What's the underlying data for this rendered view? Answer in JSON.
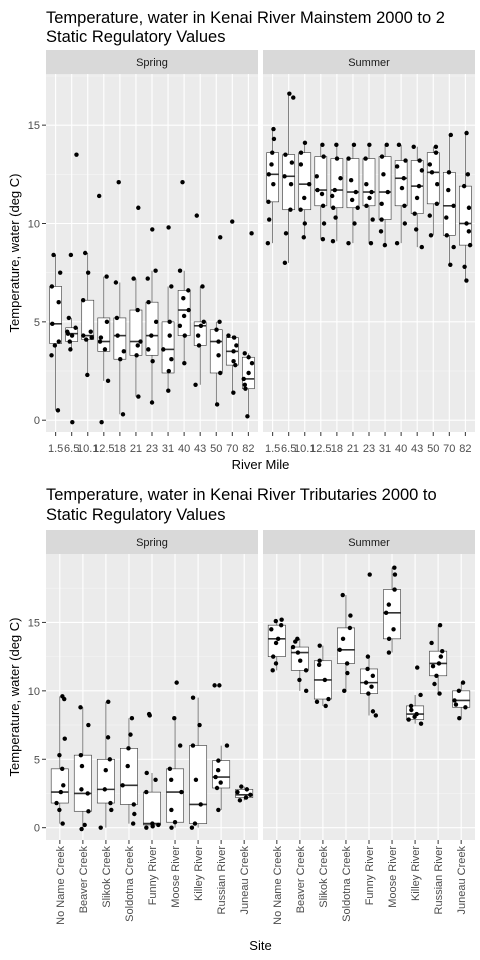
{
  "chart_data": [
    {
      "type": "boxplot",
      "title": "Temperature, water in Kenai River Mainstem  2000 to 2",
      "subtitle": "Static Regulatory Values",
      "xlabel": "River Mile",
      "ylabel": "Temperature, water (deg C)",
      "ylim": [
        -0.6,
        17.6
      ],
      "yticks": [
        0,
        5,
        10,
        15
      ],
      "x_tick_labels_rotated": false,
      "facets": [
        {
          "name": "Spring",
          "categories": [
            "1.5",
            "6.5",
            "10.1",
            "12.5",
            "18",
            "21",
            "23",
            "31",
            "40",
            "43",
            "50",
            "70",
            "82"
          ],
          "boxes": [
            {
              "q1": 3.9,
              "median": 4.9,
              "q3": 6.8,
              "whisker_low": 0.5,
              "whisker_high": 8.4
            },
            {
              "q1": 4.0,
              "median": 4.4,
              "q3": 4.7,
              "whisker_low": 3.6,
              "whisker_high": 5.2
            },
            {
              "q1": 4.1,
              "median": 4.3,
              "q3": 6.1,
              "whisker_low": 2.3,
              "whisker_high": 8.5
            },
            {
              "q1": 3.5,
              "median": 4.0,
              "q3": 5.2,
              "whisker_low": 2.0,
              "whisker_high": 7.3
            },
            {
              "q1": 3.1,
              "median": 4.3,
              "q3": 5.2,
              "whisker_low": 0.3,
              "whisker_high": 7.0
            },
            {
              "q1": 3.3,
              "median": 4.0,
              "q3": 5.6,
              "whisker_low": 1.2,
              "whisker_high": 7.2
            },
            {
              "q1": 3.3,
              "median": 4.3,
              "q3": 6.0,
              "whisker_low": 0.9,
              "whisker_high": 7.6
            },
            {
              "q1": 2.4,
              "median": 3.6,
              "q3": 5.0,
              "whisker_low": 1.5,
              "whisker_high": 6.8
            },
            {
              "q1": 4.3,
              "median": 5.6,
              "q3": 6.6,
              "whisker_low": 2.9,
              "whisker_high": 7.6
            },
            {
              "q1": 3.8,
              "median": 4.8,
              "q3": 5.0,
              "whisker_low": 1.8,
              "whisker_high": 6.8
            },
            {
              "q1": 2.4,
              "median": 4.0,
              "q3": 4.6,
              "whisker_low": 0.8,
              "whisker_high": 5.0
            },
            {
              "q1": 2.8,
              "median": 3.5,
              "q3": 4.2,
              "whisker_low": 1.4,
              "whisker_high": 4.3
            },
            {
              "q1": 1.6,
              "median": 2.1,
              "q3": 3.2,
              "whisker_low": 0.2,
              "whisker_high": 3.4
            }
          ],
          "points": [
            [
              0.5,
              3.3,
              3.8,
              4.0,
              4.9,
              6.0,
              6.8,
              7.5,
              8.4
            ],
            [
              -0.1,
              3.6,
              4.0,
              4.3,
              4.4,
              4.5,
              4.7,
              5.2,
              8.4,
              13.5
            ],
            [
              2.3,
              4.1,
              4.2,
              4.3,
              4.5,
              6.1,
              7.5,
              8.5
            ],
            [
              -0.1,
              2.0,
              3.6,
              4.0,
              4.2,
              5.0,
              7.3,
              11.4
            ],
            [
              0.3,
              3.1,
              3.5,
              4.3,
              5.2,
              7.0,
              12.1
            ],
            [
              1.2,
              3.3,
              3.8,
              4.0,
              5.6,
              7.2,
              10.8
            ],
            [
              0.9,
              3.0,
              3.6,
              4.3,
              5.0,
              6.0,
              7.2,
              7.6,
              9.7
            ],
            [
              1.5,
              2.5,
              3.1,
              3.6,
              4.3,
              5.0,
              6.8,
              9.8
            ],
            [
              2.9,
              4.3,
              4.8,
              5.3,
              5.6,
              6.2,
              6.6,
              7.6,
              12.1
            ],
            [
              1.8,
              3.8,
              4.3,
              4.8,
              5.0,
              6.8,
              10.4
            ],
            [
              0.8,
              2.4,
              3.3,
              4.0,
              4.6,
              5.0,
              9.3
            ],
            [
              1.4,
              2.8,
              3.0,
              3.5,
              3.8,
              4.2,
              4.3,
              10.1
            ],
            [
              0.2,
              1.6,
              1.8,
              2.1,
              2.4,
              2.9,
              3.2,
              3.4,
              9.5
            ]
          ]
        },
        {
          "name": "Summer",
          "categories": [
            "1.5",
            "6.5",
            "10.1",
            "12.5",
            "18",
            "21",
            "23",
            "31",
            "40",
            "43",
            "50",
            "70",
            "82"
          ],
          "boxes": [
            {
              "q1": 11.1,
              "median": 12.5,
              "q3": 13.6,
              "whisker_low": 9.0,
              "whisker_high": 14.8
            },
            {
              "q1": 10.7,
              "median": 12.4,
              "q3": 13.5,
              "whisker_low": 8.0,
              "whisker_high": 16.6
            },
            {
              "q1": 10.7,
              "median": 12.0,
              "q3": 13.6,
              "whisker_low": 9.3,
              "whisker_high": 14.1
            },
            {
              "q1": 10.9,
              "median": 11.7,
              "q3": 13.4,
              "whisker_low": 9.2,
              "whisker_high": 14.0
            },
            {
              "q1": 10.8,
              "median": 11.7,
              "q3": 13.3,
              "whisker_low": 9.1,
              "whisker_high": 14.0
            },
            {
              "q1": 10.8,
              "median": 11.6,
              "q3": 13.3,
              "whisker_low": 9.0,
              "whisker_high": 14.0
            },
            {
              "q1": 10.9,
              "median": 11.6,
              "q3": 13.3,
              "whisker_low": 9.0,
              "whisker_high": 14.0
            },
            {
              "q1": 10.2,
              "median": 11.6,
              "q3": 13.4,
              "whisker_low": 8.9,
              "whisker_high": 14.0
            },
            {
              "q1": 10.9,
              "median": 12.3,
              "q3": 13.2,
              "whisker_low": 9.0,
              "whisker_high": 14.0
            },
            {
              "q1": 10.5,
              "median": 11.9,
              "q3": 13.2,
              "whisker_low": 8.8,
              "whisker_high": 13.9
            },
            {
              "q1": 11.0,
              "median": 12.6,
              "q3": 13.6,
              "whisker_low": 9.4,
              "whisker_high": 13.9
            },
            {
              "q1": 9.4,
              "median": 10.9,
              "q3": 12.6,
              "whisker_low": 7.9,
              "whisker_high": 14.5
            },
            {
              "q1": 8.9,
              "median": 10.0,
              "q3": 11.9,
              "whisker_low": 7.1,
              "whisker_high": 14.6
            }
          ],
          "points": [
            [
              9.0,
              10.2,
              11.1,
              12.0,
              12.5,
              13.0,
              13.6,
              14.3,
              14.8
            ],
            [
              8.0,
              9.5,
              10.7,
              12.0,
              12.4,
              13.1,
              13.5,
              16.4,
              16.6
            ],
            [
              9.3,
              10.0,
              10.7,
              11.3,
              12.0,
              13.0,
              13.6,
              14.1
            ],
            [
              9.2,
              10.0,
              10.9,
              11.5,
              11.7,
              12.4,
              13.4,
              14.0
            ],
            [
              9.1,
              10.3,
              10.8,
              11.4,
              11.7,
              12.3,
              13.3,
              14.0
            ],
            [
              9.0,
              10.0,
              10.8,
              11.2,
              11.6,
              12.2,
              13.3,
              14.0
            ],
            [
              9.0,
              10.2,
              10.9,
              11.3,
              11.6,
              12.0,
              13.3,
              14.0
            ],
            [
              8.9,
              9.6,
              10.2,
              11.0,
              11.6,
              12.5,
              13.4,
              14.0
            ],
            [
              9.0,
              10.0,
              10.9,
              11.8,
              12.3,
              12.9,
              13.2,
              14.0
            ],
            [
              8.8,
              9.7,
              10.5,
              11.3,
              11.9,
              12.7,
              13.2,
              13.9
            ],
            [
              9.4,
              10.4,
              11.0,
              12.0,
              12.6,
              13.0,
              13.6,
              13.9
            ],
            [
              7.9,
              8.8,
              9.4,
              10.3,
              10.9,
              11.7,
              12.6,
              14.5
            ],
            [
              7.1,
              7.8,
              8.9,
              9.6,
              10.0,
              10.8,
              11.9,
              12.5,
              14.6
            ]
          ]
        }
      ]
    },
    {
      "type": "boxplot",
      "title": "Temperature, water in Kenai River Tributaries  2000 to",
      "subtitle": "Static Regulatory Values",
      "xlabel": "Site",
      "ylabel": "Temperature, water (deg C)",
      "ylim": [
        -0.9,
        20.0
      ],
      "yticks": [
        0,
        5,
        10,
        15
      ],
      "x_tick_labels_rotated": true,
      "facets": [
        {
          "name": "Spring",
          "categories": [
            "No Name Creek",
            "Beaver Creek",
            "Slikok Creek",
            "Soldotna Creek",
            "Funny River",
            "Moose River",
            "Killey River",
            "Russian River",
            "Juneau Creek"
          ],
          "boxes": [
            {
              "q1": 1.8,
              "median": 2.6,
              "q3": 4.3,
              "whisker_low": 0.3,
              "whisker_high": 9.6
            },
            {
              "q1": 1.2,
              "median": 2.5,
              "q3": 5.3,
              "whisker_low": -0.1,
              "whisker_high": 8.8
            },
            {
              "q1": 1.8,
              "median": 2.8,
              "q3": 5.0,
              "whisker_low": 0.0,
              "whisker_high": 9.2
            },
            {
              "q1": 1.7,
              "median": 3.1,
              "q3": 5.8,
              "whisker_low": 0.3,
              "whisker_high": 8.0
            },
            {
              "q1": 0.2,
              "median": 0.3,
              "q3": 2.6,
              "whisker_low": 0.0,
              "whisker_high": 4.0
            },
            {
              "q1": 0.4,
              "median": 2.6,
              "q3": 4.3,
              "whisker_low": 0.0,
              "whisker_high": 8.0
            },
            {
              "q1": 0.3,
              "median": 1.7,
              "q3": 6.0,
              "whisker_low": 0.0,
              "whisker_high": 9.5
            },
            {
              "q1": 2.9,
              "median": 3.7,
              "q3": 4.9,
              "whisker_low": 1.3,
              "whisker_high": 6.0
            },
            {
              "q1": 2.2,
              "median": 2.4,
              "q3": 2.8,
              "whisker_low": 2.0,
              "whisker_high": 3.0
            }
          ],
          "points": [
            [
              0.3,
              1.3,
              1.8,
              2.6,
              3.1,
              4.3,
              5.3,
              6.5,
              9.4,
              9.6
            ],
            [
              -0.1,
              0.2,
              1.2,
              2.5,
              2.8,
              4.5,
              5.3,
              7.5,
              8.8
            ],
            [
              0.0,
              1.3,
              1.8,
              2.8,
              4.2,
              5.0,
              6.6,
              9.2
            ],
            [
              0.3,
              1.0,
              1.7,
              3.1,
              4.5,
              5.8,
              6.8,
              8.0
            ],
            [
              0.0,
              0.1,
              0.2,
              0.3,
              2.6,
              3.5,
              4.0,
              8.2,
              8.3
            ],
            [
              0.0,
              0.4,
              1.3,
              2.6,
              3.5,
              4.3,
              6.0,
              8.0,
              10.6
            ],
            [
              0.0,
              0.3,
              1.7,
              3.5,
              6.0,
              7.5,
              9.5
            ],
            [
              1.3,
              2.9,
              3.3,
              3.7,
              4.2,
              4.9,
              6.0,
              10.4,
              10.4
            ],
            [
              2.0,
              2.2,
              2.4,
              2.6,
              2.8,
              3.0
            ]
          ]
        },
        {
          "name": "Summer",
          "categories": [
            "No Name Creek",
            "Beaver Creek",
            "Slikok Creek",
            "Soldotna Creek",
            "Funny River",
            "Moose River",
            "Killey River",
            "Russian River",
            "Juneau Creek"
          ],
          "boxes": [
            {
              "q1": 12.5,
              "median": 13.8,
              "q3": 14.8,
              "whisker_low": 11.5,
              "whisker_high": 15.2
            },
            {
              "q1": 11.5,
              "median": 12.8,
              "q3": 13.2,
              "whisker_low": 10.0,
              "whisker_high": 13.8
            },
            {
              "q1": 9.4,
              "median": 10.8,
              "q3": 12.2,
              "whisker_low": 8.9,
              "whisker_high": 13.3
            },
            {
              "q1": 12.0,
              "median": 13.0,
              "q3": 14.6,
              "whisker_low": 10.0,
              "whisker_high": 17.0
            },
            {
              "q1": 9.8,
              "median": 10.6,
              "q3": 11.6,
              "whisker_low": 8.2,
              "whisker_high": 12.5
            },
            {
              "q1": 13.8,
              "median": 15.7,
              "q3": 17.4,
              "whisker_low": 12.8,
              "whisker_high": 19.0
            },
            {
              "q1": 7.9,
              "median": 8.3,
              "q3": 8.9,
              "whisker_low": 7.6,
              "whisker_high": 9.7
            },
            {
              "q1": 11.1,
              "median": 12.0,
              "q3": 12.9,
              "whisker_low": 9.8,
              "whisker_high": 14.8
            },
            {
              "q1": 8.8,
              "median": 9.3,
              "q3": 10.0,
              "whisker_low": 8.0,
              "whisker_high": 10.6
            }
          ],
          "points": [
            [
              11.5,
              12.0,
              12.5,
              13.5,
              13.8,
              14.5,
              14.8,
              15.1,
              15.2
            ],
            [
              10.0,
              10.8,
              11.5,
              12.2,
              12.8,
              13.2,
              13.6,
              13.8
            ],
            [
              8.9,
              9.2,
              9.4,
              10.8,
              11.9,
              12.2,
              13.3
            ],
            [
              10.0,
              11.3,
              12.0,
              13.0,
              13.8,
              14.6,
              15.5,
              17.0
            ],
            [
              8.2,
              8.5,
              9.8,
              10.3,
              10.6,
              11.1,
              11.6,
              12.5,
              18.5
            ],
            [
              12.8,
              13.8,
              14.5,
              15.7,
              16.3,
              17.4,
              18.5,
              19.0
            ],
            [
              7.6,
              7.9,
              8.1,
              8.3,
              8.6,
              8.9,
              9.7,
              11.7
            ],
            [
              9.8,
              10.5,
              11.1,
              11.8,
              12.0,
              12.5,
              12.9,
              13.5,
              14.8
            ],
            [
              8.0,
              8.8,
              9.0,
              9.3,
              10.0,
              10.6
            ]
          ]
        }
      ]
    }
  ],
  "colors": {
    "panel_background": "#ebebeb",
    "strip_background": "#d9d9d9",
    "grid_major": "#ffffff",
    "grid_minor": "#f5f5f5",
    "box_fill": "#ffffff",
    "box_line": "#333333",
    "point": "#000000",
    "tick_text": "#4d4d4d",
    "title_text": "#000000"
  }
}
